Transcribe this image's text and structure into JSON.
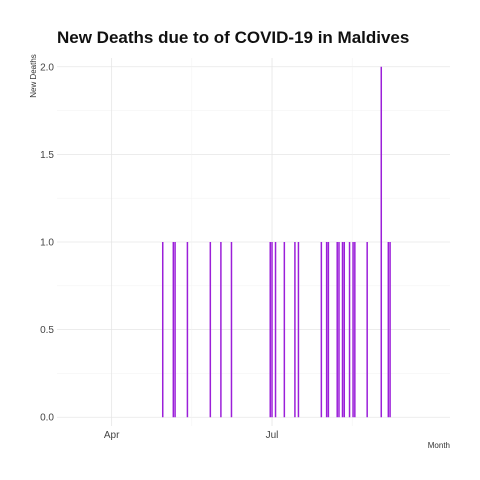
{
  "chart_data": {
    "type": "bar",
    "title": "New Deaths due to of COVID-19 in Maldives",
    "xlabel": "Month",
    "ylabel": "New Deaths",
    "bar_color": "#9b1fd9",
    "x_range": [
      "2020-03-01",
      "2020-10-10"
    ],
    "y_range": [
      -0.05,
      2.05
    ],
    "y_ticks": [
      0.0,
      0.5,
      1.0,
      1.5,
      2.0
    ],
    "y_tick_labels": [
      "0.0",
      "0.5",
      "1.0",
      "1.5",
      "2.0"
    ],
    "x_ticks": [
      {
        "date": "2020-04-01",
        "label": "Apr"
      },
      {
        "date": "2020-07-01",
        "label": "Jul"
      }
    ],
    "grid": true,
    "points": [
      {
        "date": "2020-04-30",
        "value": 1
      },
      {
        "date": "2020-05-06",
        "value": 1
      },
      {
        "date": "2020-05-07",
        "value": 1
      },
      {
        "date": "2020-05-14",
        "value": 1
      },
      {
        "date": "2020-05-27",
        "value": 1
      },
      {
        "date": "2020-06-02",
        "value": 1
      },
      {
        "date": "2020-06-08",
        "value": 1
      },
      {
        "date": "2020-06-30",
        "value": 1
      },
      {
        "date": "2020-07-01",
        "value": 1
      },
      {
        "date": "2020-07-03",
        "value": 1
      },
      {
        "date": "2020-07-08",
        "value": 1
      },
      {
        "date": "2020-07-14",
        "value": 1
      },
      {
        "date": "2020-07-16",
        "value": 1
      },
      {
        "date": "2020-07-29",
        "value": 1
      },
      {
        "date": "2020-08-01",
        "value": 1
      },
      {
        "date": "2020-08-02",
        "value": 1
      },
      {
        "date": "2020-08-07",
        "value": 1
      },
      {
        "date": "2020-08-08",
        "value": 1
      },
      {
        "date": "2020-08-10",
        "value": 1
      },
      {
        "date": "2020-08-11",
        "value": 1
      },
      {
        "date": "2020-08-14",
        "value": 1
      },
      {
        "date": "2020-08-16",
        "value": 1
      },
      {
        "date": "2020-08-17",
        "value": 1
      },
      {
        "date": "2020-08-24",
        "value": 1
      },
      {
        "date": "2020-09-01",
        "value": 2
      },
      {
        "date": "2020-09-05",
        "value": 1
      },
      {
        "date": "2020-09-06",
        "value": 1
      }
    ]
  }
}
